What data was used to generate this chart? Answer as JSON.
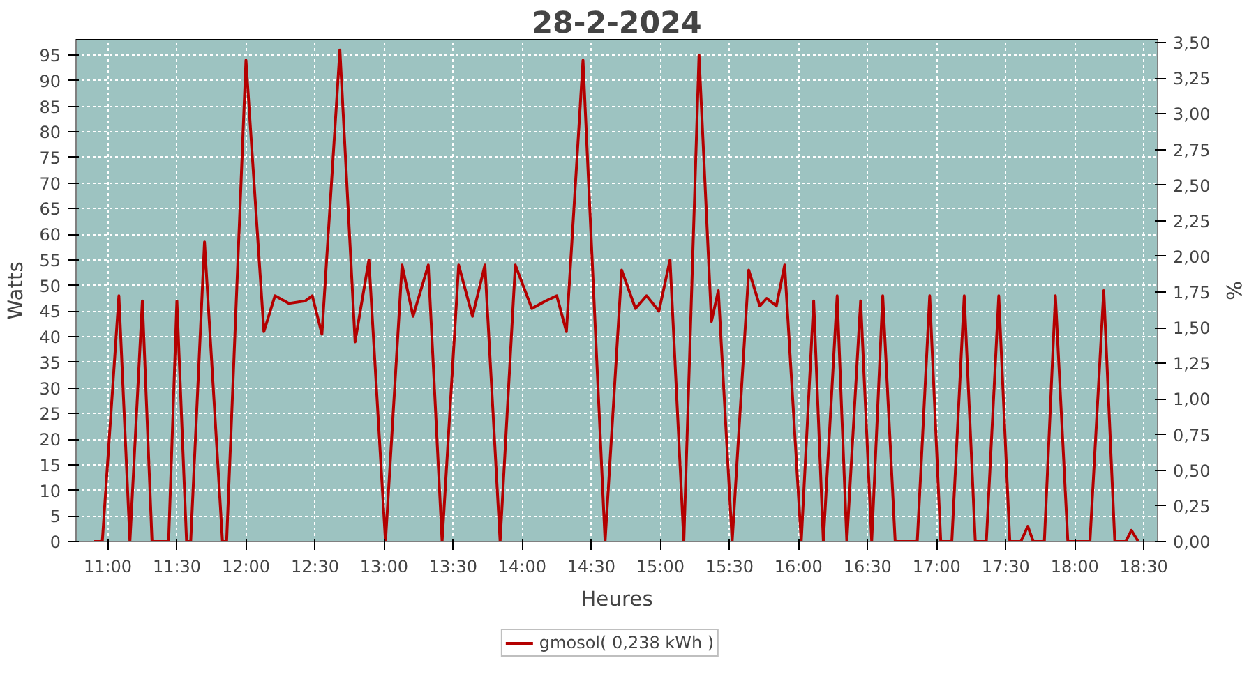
{
  "chart_data": {
    "type": "line",
    "title": "28-2-2024",
    "xlabel": "Heures",
    "ylabel": "Watts",
    "y2label": "%",
    "x": [
      10.9,
      10.96,
      11.08,
      11.16,
      11.25,
      11.32,
      11.44,
      11.5,
      11.57,
      11.6,
      11.7,
      11.83,
      11.86,
      12.0,
      12.13,
      12.21,
      12.31,
      12.43,
      12.48,
      12.55,
      12.68,
      12.79,
      12.89,
      13.01,
      13.13,
      13.21,
      13.32,
      13.42,
      13.54,
      13.64,
      13.73,
      13.84,
      13.95,
      14.07,
      14.17,
      14.25,
      14.32,
      14.44,
      14.6,
      14.72,
      14.82,
      14.9,
      14.99,
      15.07,
      15.17,
      15.28,
      15.37,
      15.42,
      15.52,
      15.64,
      15.72,
      15.77,
      15.84,
      15.9,
      16.02,
      16.11,
      16.18,
      16.28,
      16.35,
      16.45,
      16.53,
      16.61,
      16.7,
      16.86,
      16.95,
      17.03,
      17.11,
      17.2,
      17.28,
      17.36,
      17.45,
      17.53,
      17.61,
      17.66,
      17.7,
      17.78,
      17.86,
      17.95,
      18.11,
      18.21,
      18.29,
      18.37,
      18.41,
      18.46
    ],
    "series": [
      {
        "name": "gmosol( 0,238 kWh )",
        "color": "#b40000",
        "values": [
          0,
          0,
          48,
          0,
          47,
          0,
          0,
          47,
          0,
          0,
          58.5,
          0,
          0,
          94,
          41,
          48,
          46.5,
          47,
          48,
          40.5,
          96,
          39,
          55,
          0,
          54,
          44,
          54,
          0,
          54,
          44,
          54,
          0,
          54,
          45.5,
          47,
          48,
          41,
          94,
          0,
          53,
          45.5,
          48,
          45,
          55,
          0,
          95,
          43,
          49,
          0,
          53,
          46,
          47.5,
          46,
          54,
          0,
          47,
          0,
          48,
          0,
          47,
          0,
          48,
          0,
          0,
          48,
          0,
          0,
          48,
          0,
          0,
          48,
          0,
          0,
          3,
          0,
          0,
          48,
          0,
          0,
          49,
          0,
          0,
          2.2,
          0
        ]
      }
    ],
    "xlim": [
      10.77,
      18.6
    ],
    "xticks": [
      {
        "value": 11,
        "label": "11:00"
      },
      {
        "value": 11.5,
        "label": "11:30"
      },
      {
        "value": 12,
        "label": "12:00"
      },
      {
        "value": 12.5,
        "label": "12:30"
      },
      {
        "value": 13,
        "label": "13:00"
      },
      {
        "value": 13.5,
        "label": "13:30"
      },
      {
        "value": 14,
        "label": "14:00"
      },
      {
        "value": 14.5,
        "label": "14:30"
      },
      {
        "value": 15,
        "label": "15:00"
      },
      {
        "value": 15.5,
        "label": "15:30"
      },
      {
        "value": 16,
        "label": "16:00"
      },
      {
        "value": 16.5,
        "label": "16:30"
      },
      {
        "value": 17,
        "label": "17:00"
      },
      {
        "value": 17.5,
        "label": "17:30"
      },
      {
        "value": 18,
        "label": "18:00"
      },
      {
        "value": 18.5,
        "label": "18:30"
      }
    ],
    "ylim": [
      0,
      98
    ],
    "yticks": [
      0,
      5,
      10,
      15,
      20,
      25,
      30,
      35,
      40,
      45,
      50,
      55,
      60,
      65,
      70,
      75,
      80,
      85,
      90,
      95
    ],
    "y2lim": [
      0,
      3.52
    ],
    "y2ticks": [
      {
        "value": 0,
        "label": "0,00"
      },
      {
        "value": 0.25,
        "label": "0,25"
      },
      {
        "value": 0.5,
        "label": "0,50"
      },
      {
        "value": 0.75,
        "label": "0,75"
      },
      {
        "value": 1,
        "label": "1,00"
      },
      {
        "value": 1.25,
        "label": "1,25"
      },
      {
        "value": 1.5,
        "label": "1,50"
      },
      {
        "value": 1.75,
        "label": "1,75"
      },
      {
        "value": 2,
        "label": "2,00"
      },
      {
        "value": 2.25,
        "label": "2,25"
      },
      {
        "value": 2.5,
        "label": "2,50"
      },
      {
        "value": 2.75,
        "label": "2,75"
      },
      {
        "value": 3,
        "label": "3,00"
      },
      {
        "value": 3.25,
        "label": "3,25"
      },
      {
        "value": 3.5,
        "label": "3,50"
      }
    ],
    "grid": true,
    "legend": "bottom",
    "line_style": "solid",
    "marker": "none"
  }
}
